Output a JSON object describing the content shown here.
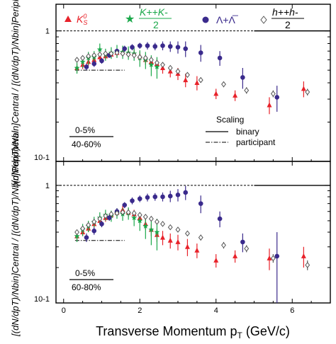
{
  "x_axis": {
    "label": "Transverse Momentum p",
    "label_sub": "T",
    "label_unit": " (GeV/c)",
    "ticks": [
      "0",
      "2",
      "4",
      "6"
    ]
  },
  "legend": [
    {
      "name": "K0S",
      "text": "K",
      "sup": "0",
      "sub": "S",
      "color": "#e8222a",
      "marker": "triangle"
    },
    {
      "name": "(K++K-)/2",
      "text": "K++K-",
      "den": "2",
      "color": "#1aa84a",
      "marker": "star"
    },
    {
      "name": "Lambda+AntiLambda",
      "text": "Λ+Λ̅",
      "color": "#3a2a8c",
      "marker": "circle"
    },
    {
      "name": "(h++h-)/2",
      "text": "h++h-",
      "den": "2",
      "color": "#555555",
      "marker": "diamond"
    }
  ],
  "scaling": {
    "title": "Scaling",
    "binary": "binary",
    "participant": "participant"
  },
  "panels": [
    {
      "id": "top",
      "ylabel": "[(dN/dpT)/Nbin]Central / [(dN/dpT)/Nbin]Peripheral",
      "yticks": [
        "1",
        "10-1"
      ],
      "centrality_num": "0-5%",
      "centrality_den": "40-60%"
    },
    {
      "id": "bottom",
      "ylabel": "[(dN/dpT)/Nbin]Central / [(dN/dpT)/Nbin]Peripheral",
      "yticks": [
        "1",
        "10-1"
      ],
      "centrality_num": "0-5%",
      "centrality_den": "60-80%"
    }
  ],
  "chart_data": [
    {
      "type": "scatter",
      "panel": "top",
      "xlabel": "Transverse Momentum pT (GeV/c)",
      "ylabel": "[(dN/dpT)/Nbin]Central/[(dN/dpT)/Nbin]Peripheral",
      "xlim": [
        -0.2,
        7.0
      ],
      "ylim": [
        0.1,
        1.6
      ],
      "yscale": "log",
      "reference_lines": {
        "binary": 1.0,
        "participant": 0.5,
        "participant_xrange": [
          0.3,
          1.6
        ]
      },
      "series": [
        {
          "name": "K0S",
          "color": "#e8222a",
          "marker": "triangle",
          "points": [
            {
              "x": 0.35,
              "y": 0.52,
              "e": 0.04
            },
            {
              "x": 0.5,
              "y": 0.55,
              "e": 0.04
            },
            {
              "x": 0.65,
              "y": 0.58,
              "e": 0.04
            },
            {
              "x": 0.8,
              "y": 0.6,
              "e": 0.04
            },
            {
              "x": 0.95,
              "y": 0.63,
              "e": 0.04
            },
            {
              "x": 1.1,
              "y": 0.64,
              "e": 0.04
            },
            {
              "x": 1.25,
              "y": 0.66,
              "e": 0.04
            },
            {
              "x": 1.4,
              "y": 0.68,
              "e": 0.05
            },
            {
              "x": 1.55,
              "y": 0.69,
              "e": 0.05
            },
            {
              "x": 1.7,
              "y": 0.68,
              "e": 0.05
            },
            {
              "x": 1.85,
              "y": 0.67,
              "e": 0.05
            },
            {
              "x": 2.0,
              "y": 0.64,
              "e": 0.05
            },
            {
              "x": 2.15,
              "y": 0.6,
              "e": 0.05
            },
            {
              "x": 2.3,
              "y": 0.58,
              "e": 0.05
            },
            {
              "x": 2.45,
              "y": 0.56,
              "e": 0.05
            },
            {
              "x": 2.6,
              "y": 0.52,
              "e": 0.05
            },
            {
              "x": 2.8,
              "y": 0.49,
              "e": 0.05
            },
            {
              "x": 3.0,
              "y": 0.47,
              "e": 0.05
            },
            {
              "x": 3.2,
              "y": 0.42,
              "e": 0.05
            },
            {
              "x": 3.5,
              "y": 0.4,
              "e": 0.05
            },
            {
              "x": 4.0,
              "y": 0.33,
              "e": 0.03
            },
            {
              "x": 4.5,
              "y": 0.32,
              "e": 0.03
            },
            {
              "x": 5.4,
              "y": 0.27,
              "e": 0.04
            },
            {
              "x": 6.3,
              "y": 0.36,
              "e": 0.05
            }
          ]
        },
        {
          "name": "(K++K-)/2",
          "color": "#1aa84a",
          "marker": "star",
          "points": [
            {
              "x": 0.35,
              "y": 0.52,
              "e": 0.05
            },
            {
              "x": 0.5,
              "y": 0.58,
              "e": 0.06
            },
            {
              "x": 0.65,
              "y": 0.62,
              "e": 0.07
            },
            {
              "x": 0.8,
              "y": 0.63,
              "e": 0.07
            },
            {
              "x": 0.95,
              "y": 0.72,
              "e": 0.08
            },
            {
              "x": 1.1,
              "y": 0.66,
              "e": 0.07
            },
            {
              "x": 1.25,
              "y": 0.68,
              "e": 0.07
            },
            {
              "x": 1.4,
              "y": 0.7,
              "e": 0.08
            },
            {
              "x": 1.55,
              "y": 0.69,
              "e": 0.08
            },
            {
              "x": 1.7,
              "y": 0.68,
              "e": 0.08
            },
            {
              "x": 1.85,
              "y": 0.67,
              "e": 0.08
            },
            {
              "x": 2.0,
              "y": 0.62,
              "e": 0.09
            },
            {
              "x": 2.15,
              "y": 0.6,
              "e": 0.09
            },
            {
              "x": 2.3,
              "y": 0.55,
              "e": 0.1
            },
            {
              "x": 2.45,
              "y": 0.53,
              "e": 0.1
            }
          ]
        },
        {
          "name": "Lambda+AntiLambda",
          "color": "#3a2a8c",
          "marker": "circle",
          "points": [
            {
              "x": 0.6,
              "y": 0.53,
              "e": 0.03
            },
            {
              "x": 0.8,
              "y": 0.56,
              "e": 0.03
            },
            {
              "x": 1.0,
              "y": 0.59,
              "e": 0.03
            },
            {
              "x": 1.2,
              "y": 0.65,
              "e": 0.03
            },
            {
              "x": 1.4,
              "y": 0.7,
              "e": 0.03
            },
            {
              "x": 1.6,
              "y": 0.73,
              "e": 0.04
            },
            {
              "x": 1.8,
              "y": 0.75,
              "e": 0.04
            },
            {
              "x": 2.0,
              "y": 0.77,
              "e": 0.04
            },
            {
              "x": 2.2,
              "y": 0.77,
              "e": 0.05
            },
            {
              "x": 2.4,
              "y": 0.76,
              "e": 0.05
            },
            {
              "x": 2.6,
              "y": 0.77,
              "e": 0.06
            },
            {
              "x": 2.8,
              "y": 0.76,
              "e": 0.07
            },
            {
              "x": 3.0,
              "y": 0.75,
              "e": 0.08
            },
            {
              "x": 3.2,
              "y": 0.73,
              "e": 0.1
            },
            {
              "x": 3.6,
              "y": 0.68,
              "e": 0.1
            },
            {
              "x": 4.1,
              "y": 0.62,
              "e": 0.08
            },
            {
              "x": 4.7,
              "y": 0.44,
              "e": 0.08
            },
            {
              "x": 5.6,
              "y": 0.31,
              "e": 0.07
            }
          ]
        },
        {
          "name": "(h++h-)/2",
          "color": "#555555",
          "marker": "diamond",
          "points": [
            {
              "x": 0.35,
              "y": 0.6,
              "e": 0.02
            },
            {
              "x": 0.5,
              "y": 0.62,
              "e": 0.02
            },
            {
              "x": 0.65,
              "y": 0.64,
              "e": 0.02
            },
            {
              "x": 0.8,
              "y": 0.65,
              "e": 0.02
            },
            {
              "x": 0.95,
              "y": 0.66,
              "e": 0.02
            },
            {
              "x": 1.1,
              "y": 0.67,
              "e": 0.02
            },
            {
              "x": 1.25,
              "y": 0.67,
              "e": 0.02
            },
            {
              "x": 1.4,
              "y": 0.68,
              "e": 0.02
            },
            {
              "x": 1.55,
              "y": 0.67,
              "e": 0.02
            },
            {
              "x": 1.7,
              "y": 0.66,
              "e": 0.02
            },
            {
              "x": 1.85,
              "y": 0.65,
              "e": 0.02
            },
            {
              "x": 2.0,
              "y": 0.63,
              "e": 0.02
            },
            {
              "x": 2.15,
              "y": 0.62,
              "e": 0.02
            },
            {
              "x": 2.3,
              "y": 0.6,
              "e": 0.02
            },
            {
              "x": 2.45,
              "y": 0.57,
              "e": 0.02
            },
            {
              "x": 2.6,
              "y": 0.55,
              "e": 0.02
            },
            {
              "x": 2.8,
              "y": 0.52,
              "e": 0.02
            },
            {
              "x": 3.0,
              "y": 0.49,
              "e": 0.02
            },
            {
              "x": 3.25,
              "y": 0.46,
              "e": 0.02
            },
            {
              "x": 3.6,
              "y": 0.42,
              "e": 0.02
            },
            {
              "x": 4.2,
              "y": 0.39,
              "e": 0.02
            },
            {
              "x": 4.8,
              "y": 0.35,
              "e": 0.02
            },
            {
              "x": 5.5,
              "y": 0.33,
              "e": 0.02
            },
            {
              "x": 6.4,
              "y": 0.34,
              "e": 0.02
            }
          ]
        }
      ]
    },
    {
      "type": "scatter",
      "panel": "bottom",
      "xlabel": "Transverse Momentum pT (GeV/c)",
      "ylabel": "[(dN/dpT)/Nbin]Central/[(dN/dpT)/Nbin]Peripheral",
      "xlim": [
        -0.2,
        7.0
      ],
      "ylim": [
        0.1,
        1.6
      ],
      "yscale": "log",
      "reference_lines": {
        "binary": 1.0,
        "participant": 0.34,
        "participant_xrange": [
          0.3,
          1.6
        ]
      },
      "series": [
        {
          "name": "K0S",
          "color": "#e8222a",
          "marker": "triangle",
          "points": [
            {
              "x": 0.35,
              "y": 0.37,
              "e": 0.03
            },
            {
              "x": 0.5,
              "y": 0.4,
              "e": 0.03
            },
            {
              "x": 0.65,
              "y": 0.43,
              "e": 0.03
            },
            {
              "x": 0.8,
              "y": 0.47,
              "e": 0.03
            },
            {
              "x": 0.95,
              "y": 0.5,
              "e": 0.03
            },
            {
              "x": 1.1,
              "y": 0.53,
              "e": 0.04
            },
            {
              "x": 1.25,
              "y": 0.56,
              "e": 0.04
            },
            {
              "x": 1.4,
              "y": 0.59,
              "e": 0.04
            },
            {
              "x": 1.55,
              "y": 0.62,
              "e": 0.05
            },
            {
              "x": 1.7,
              "y": 0.59,
              "e": 0.05
            },
            {
              "x": 1.85,
              "y": 0.57,
              "e": 0.05
            },
            {
              "x": 2.0,
              "y": 0.53,
              "e": 0.05
            },
            {
              "x": 2.15,
              "y": 0.47,
              "e": 0.05
            },
            {
              "x": 2.3,
              "y": 0.42,
              "e": 0.05
            },
            {
              "x": 2.45,
              "y": 0.38,
              "e": 0.05
            },
            {
              "x": 2.6,
              "y": 0.36,
              "e": 0.05
            },
            {
              "x": 2.8,
              "y": 0.34,
              "e": 0.05
            },
            {
              "x": 3.0,
              "y": 0.33,
              "e": 0.05
            },
            {
              "x": 3.25,
              "y": 0.3,
              "e": 0.05
            },
            {
              "x": 3.5,
              "y": 0.28,
              "e": 0.04
            },
            {
              "x": 4.0,
              "y": 0.23,
              "e": 0.03
            },
            {
              "x": 4.5,
              "y": 0.25,
              "e": 0.03
            },
            {
              "x": 5.4,
              "y": 0.24,
              "e": 0.05
            },
            {
              "x": 6.3,
              "y": 0.25,
              "e": 0.05
            }
          ]
        },
        {
          "name": "(K++K-)/2",
          "color": "#1aa84a",
          "marker": "star",
          "points": [
            {
              "x": 0.35,
              "y": 0.37,
              "e": 0.04
            },
            {
              "x": 0.5,
              "y": 0.42,
              "e": 0.05
            },
            {
              "x": 0.65,
              "y": 0.45,
              "e": 0.05
            },
            {
              "x": 0.8,
              "y": 0.49,
              "e": 0.05
            },
            {
              "x": 0.95,
              "y": 0.53,
              "e": 0.06
            },
            {
              "x": 1.1,
              "y": 0.56,
              "e": 0.06
            },
            {
              "x": 1.25,
              "y": 0.55,
              "e": 0.06
            },
            {
              "x": 1.4,
              "y": 0.58,
              "e": 0.06
            },
            {
              "x": 1.55,
              "y": 0.57,
              "e": 0.07
            },
            {
              "x": 1.7,
              "y": 0.58,
              "e": 0.07
            },
            {
              "x": 1.85,
              "y": 0.53,
              "e": 0.08
            },
            {
              "x": 2.0,
              "y": 0.5,
              "e": 0.09
            },
            {
              "x": 2.15,
              "y": 0.45,
              "e": 0.1
            },
            {
              "x": 2.3,
              "y": 0.42,
              "e": 0.11
            },
            {
              "x": 2.45,
              "y": 0.4,
              "e": 0.12
            }
          ]
        },
        {
          "name": "Lambda+AntiLambda",
          "color": "#3a2a8c",
          "marker": "circle",
          "points": [
            {
              "x": 0.6,
              "y": 0.36,
              "e": 0.03
            },
            {
              "x": 0.8,
              "y": 0.41,
              "e": 0.03
            },
            {
              "x": 1.0,
              "y": 0.47,
              "e": 0.03
            },
            {
              "x": 1.2,
              "y": 0.53,
              "e": 0.03
            },
            {
              "x": 1.4,
              "y": 0.6,
              "e": 0.04
            },
            {
              "x": 1.6,
              "y": 0.68,
              "e": 0.04
            },
            {
              "x": 1.8,
              "y": 0.74,
              "e": 0.05
            },
            {
              "x": 2.0,
              "y": 0.77,
              "e": 0.05
            },
            {
              "x": 2.2,
              "y": 0.79,
              "e": 0.06
            },
            {
              "x": 2.4,
              "y": 0.8,
              "e": 0.06
            },
            {
              "x": 2.6,
              "y": 0.8,
              "e": 0.07
            },
            {
              "x": 2.8,
              "y": 0.81,
              "e": 0.09
            },
            {
              "x": 3.0,
              "y": 0.83,
              "e": 0.1
            },
            {
              "x": 3.2,
              "y": 0.87,
              "e": 0.12
            },
            {
              "x": 3.6,
              "y": 0.7,
              "e": 0.12
            },
            {
              "x": 4.1,
              "y": 0.52,
              "e": 0.08
            },
            {
              "x": 4.7,
              "y": 0.33,
              "e": 0.06
            },
            {
              "x": 5.6,
              "y": 0.25,
              "e": 0.15
            }
          ]
        },
        {
          "name": "(h++h-)/2",
          "color": "#555555",
          "marker": "diamond",
          "points": [
            {
              "x": 0.35,
              "y": 0.4,
              "e": 0.02
            },
            {
              "x": 0.5,
              "y": 0.43,
              "e": 0.02
            },
            {
              "x": 0.65,
              "y": 0.46,
              "e": 0.02
            },
            {
              "x": 0.8,
              "y": 0.49,
              "e": 0.02
            },
            {
              "x": 0.95,
              "y": 0.52,
              "e": 0.02
            },
            {
              "x": 1.1,
              "y": 0.55,
              "e": 0.02
            },
            {
              "x": 1.25,
              "y": 0.57,
              "e": 0.02
            },
            {
              "x": 1.4,
              "y": 0.58,
              "e": 0.02
            },
            {
              "x": 1.55,
              "y": 0.59,
              "e": 0.02
            },
            {
              "x": 1.7,
              "y": 0.59,
              "e": 0.02
            },
            {
              "x": 1.85,
              "y": 0.58,
              "e": 0.02
            },
            {
              "x": 2.0,
              "y": 0.56,
              "e": 0.02
            },
            {
              "x": 2.15,
              "y": 0.54,
              "e": 0.02
            },
            {
              "x": 2.3,
              "y": 0.52,
              "e": 0.02
            },
            {
              "x": 2.45,
              "y": 0.49,
              "e": 0.02
            },
            {
              "x": 2.6,
              "y": 0.47,
              "e": 0.02
            },
            {
              "x": 2.8,
              "y": 0.44,
              "e": 0.02
            },
            {
              "x": 3.0,
              "y": 0.42,
              "e": 0.02
            },
            {
              "x": 3.25,
              "y": 0.39,
              "e": 0.02
            },
            {
              "x": 3.6,
              "y": 0.36,
              "e": 0.02
            },
            {
              "x": 4.2,
              "y": 0.31,
              "e": 0.02
            },
            {
              "x": 4.8,
              "y": 0.29,
              "e": 0.02
            },
            {
              "x": 5.5,
              "y": 0.24,
              "e": 0.02
            },
            {
              "x": 6.4,
              "y": 0.21,
              "e": 0.02
            }
          ]
        }
      ]
    }
  ]
}
